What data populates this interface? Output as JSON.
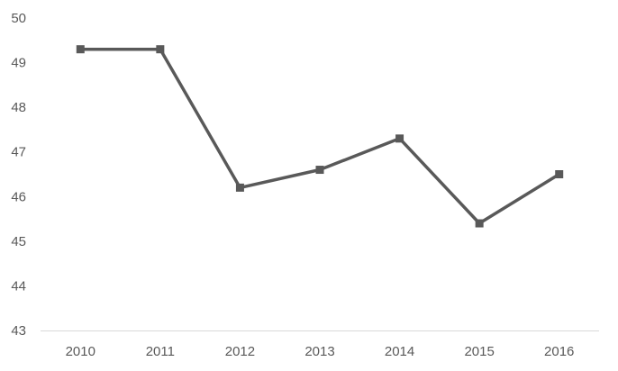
{
  "chart_data": {
    "type": "line",
    "title": "",
    "xlabel": "",
    "ylabel": "",
    "categories": [
      "2010",
      "2011",
      "2012",
      "2013",
      "2014",
      "2015",
      "2016"
    ],
    "series": [
      {
        "values": [
          49.3,
          49.3,
          46.2,
          46.6,
          47.3,
          45.4,
          46.5
        ],
        "color": "#595959",
        "marker": "square"
      }
    ],
    "ylim": [
      43,
      50
    ],
    "yticks": [
      "43",
      "44",
      "45",
      "46",
      "47",
      "48",
      "49",
      "50"
    ],
    "grid": false,
    "legend": "none",
    "axis_color": "#d9d9d9",
    "label_color": "#595959"
  }
}
